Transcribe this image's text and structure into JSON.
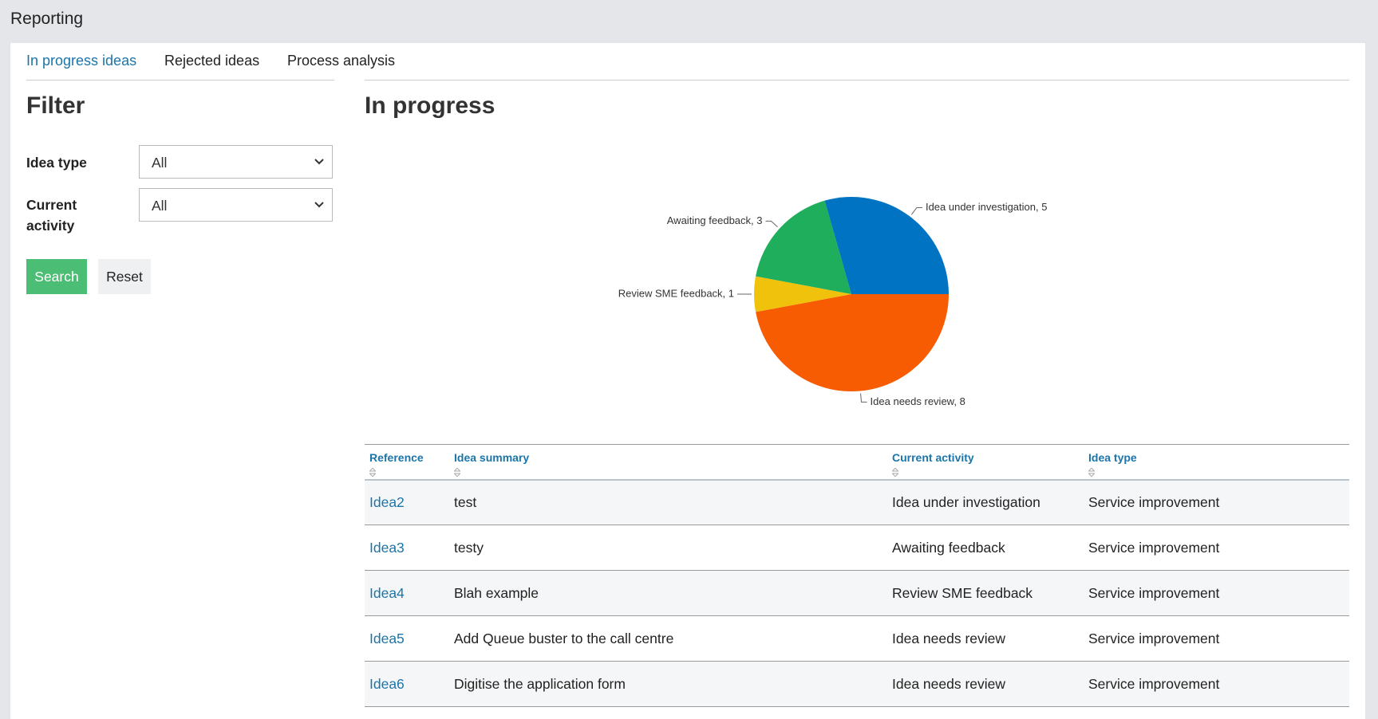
{
  "header": {
    "title": "Reporting"
  },
  "tabs": [
    "In progress ideas",
    "Rejected ideas",
    "Process analysis"
  ],
  "filter": {
    "title": "Filter",
    "fields": [
      {
        "label": "Idea type",
        "value": "All"
      },
      {
        "label": "Current activity",
        "value": "All"
      }
    ],
    "buttons": [
      "Search",
      "Reset"
    ]
  },
  "chart_data": {
    "type": "pie",
    "title": "In progress",
    "values": [
      8,
      1,
      3,
      5
    ],
    "value_labels": [
      "Idea needs review, 8",
      "Review SME feedback, 1",
      "Awaiting feedback, 3",
      "Idea under investigation, 5"
    ],
    "colors": [
      "#f75c03",
      "#f0c20c",
      "#1fae5c",
      "#0073c2"
    ]
  },
  "table": {
    "columns": [
      "Reference",
      "Idea summary",
      "Current activity",
      "Idea type"
    ],
    "rows": [
      [
        "Idea2",
        "test",
        "Idea under investigation",
        "Service improvement"
      ],
      [
        "Idea3",
        "testy",
        "Awaiting feedback",
        "Service improvement"
      ],
      [
        "Idea4",
        "Blah example",
        "Review SME feedback",
        "Service improvement"
      ],
      [
        "Idea5",
        "Add Queue buster to the call centre",
        "Idea needs review",
        "Service improvement"
      ],
      [
        "Idea6",
        "Digitise the application form",
        "Idea needs review",
        "Service improvement"
      ]
    ]
  }
}
